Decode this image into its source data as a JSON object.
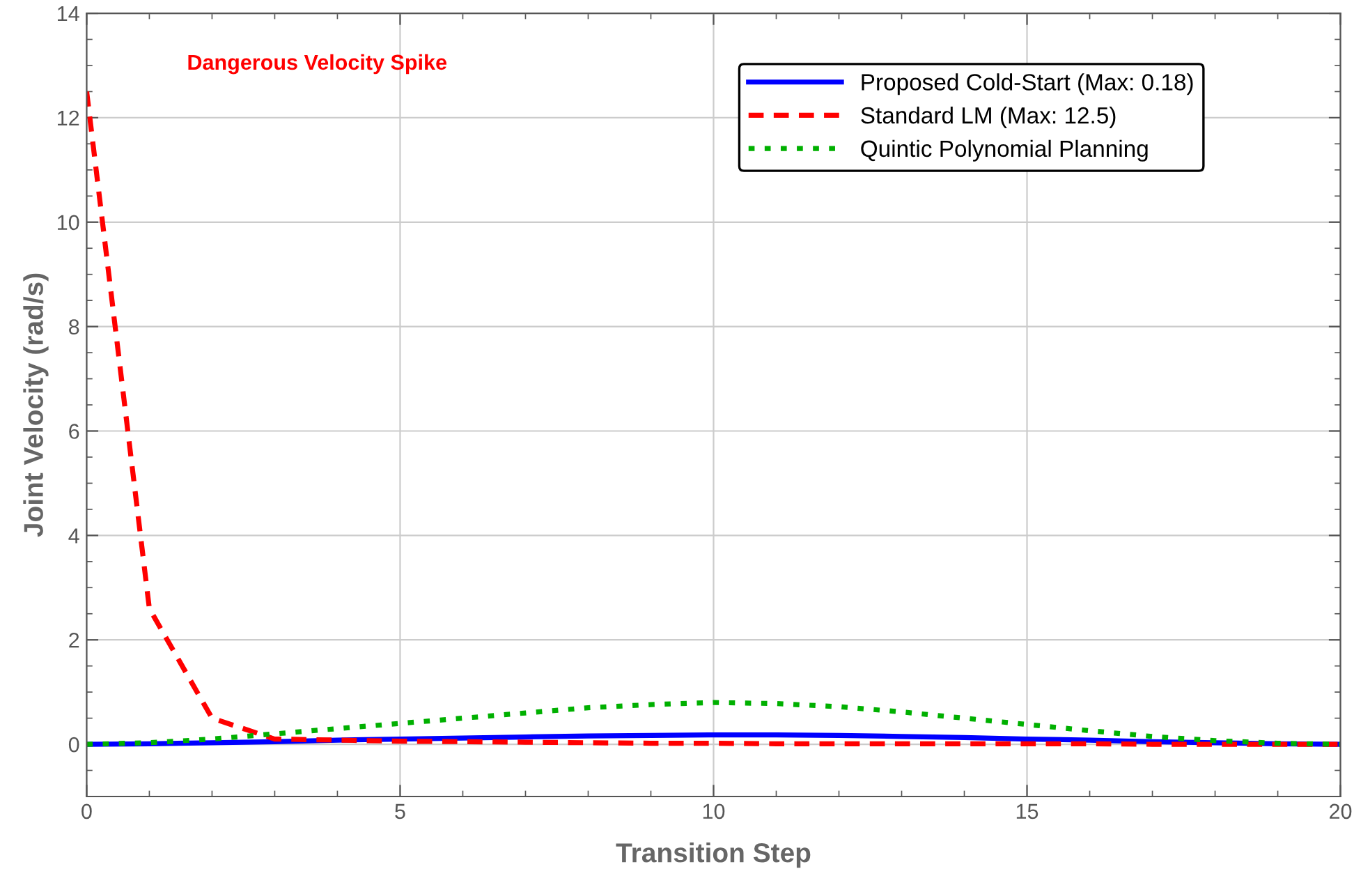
{
  "chart_data": {
    "type": "line",
    "xlabel": "Transition Step",
    "ylabel": "Joint Velocity (rad/s)",
    "x": [
      0,
      1,
      2,
      3,
      4,
      5,
      6,
      7,
      8,
      9,
      10,
      11,
      12,
      13,
      14,
      15,
      16,
      17,
      18,
      19,
      20
    ],
    "series": [
      {
        "name": "Proposed Cold-Start (Max: 0.18)",
        "color": "#0000ff",
        "line_style": "solid",
        "values": [
          0,
          0.01,
          0.03,
          0.05,
          0.08,
          0.1,
          0.12,
          0.14,
          0.16,
          0.17,
          0.18,
          0.18,
          0.17,
          0.15,
          0.13,
          0.1,
          0.08,
          0.05,
          0.03,
          0.01,
          0
        ]
      },
      {
        "name": "Standard LM (Max: 12.5)",
        "color": "#ff0000",
        "line_style": "dashed",
        "values": [
          12.5,
          2.6,
          0.5,
          0.1,
          0.08,
          0.06,
          0.05,
          0.04,
          0.03,
          0.02,
          0.02,
          0.01,
          0.01,
          0.01,
          0.01,
          0.01,
          0.01,
          0,
          0,
          0,
          0
        ]
      },
      {
        "name": "Quintic Polynomial Planning",
        "color": "#00b000",
        "line_style": "dotted",
        "values": [
          0,
          0.03,
          0.1,
          0.2,
          0.3,
          0.4,
          0.5,
          0.6,
          0.7,
          0.76,
          0.8,
          0.78,
          0.72,
          0.62,
          0.5,
          0.38,
          0.26,
          0.15,
          0.07,
          0.02,
          0
        ]
      }
    ],
    "xlim": [
      0,
      20
    ],
    "xticks": [
      0,
      5,
      10,
      15,
      20
    ],
    "ylim": [
      -1,
      14
    ],
    "yticks": [
      0,
      2,
      4,
      6,
      8,
      10,
      12,
      14
    ],
    "grid": true,
    "legend": "top right",
    "annotations": [
      "Dangerous Velocity Spike"
    ]
  }
}
